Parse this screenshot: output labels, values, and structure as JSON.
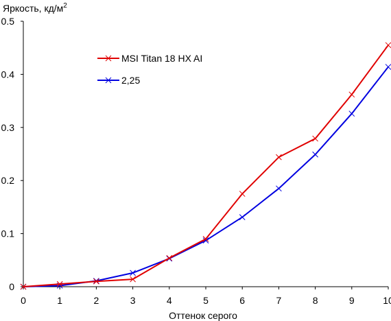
{
  "chart_data": {
    "type": "line",
    "title": "",
    "ylabel": "Яркость, кд/м",
    "ylabel_superscript": "2",
    "xlabel": "Оттенок серого",
    "xlim": [
      0,
      10
    ],
    "ylim": [
      0,
      0.5
    ],
    "x_ticks": [
      "0",
      "1",
      "2",
      "3",
      "4",
      "5",
      "6",
      "7",
      "8",
      "9",
      "10"
    ],
    "y_ticks": [
      "0",
      "0.1",
      "0.2",
      "0.3",
      "0.4",
      "0.5"
    ],
    "grid": false,
    "legend_position": "top-left",
    "x": [
      0,
      1,
      2,
      3,
      4,
      5,
      6,
      7,
      8,
      9,
      10
    ],
    "series": [
      {
        "name": "MSI Titan 18 HX AI",
        "color": "#e00000",
        "marker": "x",
        "values": [
          0.0,
          0.005,
          0.01,
          0.014,
          0.054,
          0.09,
          0.175,
          0.244,
          0.279,
          0.362,
          0.455
        ]
      },
      {
        "name": "2,25",
        "color": "#0000e0",
        "marker": "x",
        "values": [
          0.0,
          0.002,
          0.011,
          0.026,
          0.053,
          0.087,
          0.131,
          0.185,
          0.249,
          0.326,
          0.414
        ]
      }
    ]
  }
}
